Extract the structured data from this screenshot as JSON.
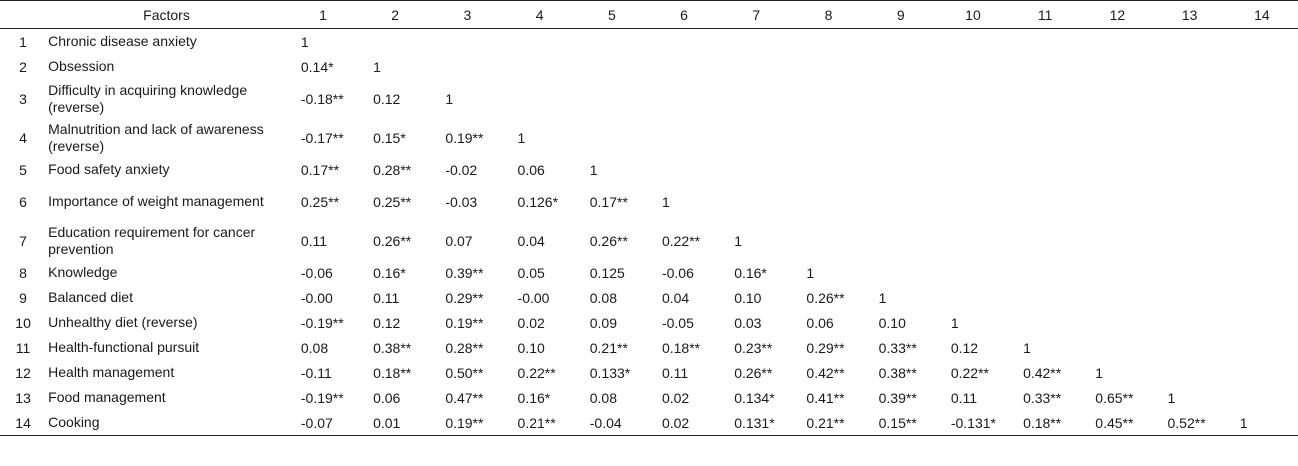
{
  "table": {
    "header": [
      "",
      "Factors",
      "1",
      "2",
      "3",
      "4",
      "5",
      "6",
      "7",
      "8",
      "9",
      "10",
      "11",
      "12",
      "13",
      "14"
    ],
    "rows": [
      {
        "num": "1",
        "factor": "Chronic disease anxiety",
        "values": [
          "1",
          "",
          "",
          "",
          "",
          "",
          "",
          "",
          "",
          "",
          "",
          "",
          "",
          ""
        ]
      },
      {
        "num": "2",
        "factor": "Obsession",
        "values": [
          "0.14*",
          "1",
          "",
          "",
          "",
          "",
          "",
          "",
          "",
          "",
          "",
          "",
          "",
          ""
        ]
      },
      {
        "num": "3",
        "factor": "Difficulty in acquiring knowledge (reverse)",
        "values": [
          "-0.18**",
          "0.12",
          "1",
          "",
          "",
          "",
          "",
          "",
          "",
          "",
          "",
          "",
          "",
          ""
        ]
      },
      {
        "num": "4",
        "factor": "Malnutrition and lack of awareness (reverse)",
        "values": [
          "-0.17**",
          "0.15*",
          "0.19**",
          "1",
          "",
          "",
          "",
          "",
          "",
          "",
          "",
          "",
          "",
          ""
        ]
      },
      {
        "num": "5",
        "factor": "Food safety anxiety",
        "values": [
          "0.17**",
          "0.28**",
          "-0.02",
          "0.06",
          "1",
          "",
          "",
          "",
          "",
          "",
          "",
          "",
          "",
          ""
        ]
      },
      {
        "num": "6",
        "factor": "Importance of weight management",
        "values": [
          "0.25**",
          "0.25**",
          "-0.03",
          "0.126*",
          "0.17**",
          "1",
          "",
          "",
          "",
          "",
          "",
          "",
          "",
          ""
        ]
      },
      {
        "num": "7",
        "factor": "Education requirement for cancer prevention",
        "values": [
          "0.11",
          "0.26**",
          "0.07",
          "0.04",
          "0.26**",
          "0.22**",
          "1",
          "",
          "",
          "",
          "",
          "",
          "",
          ""
        ]
      },
      {
        "num": "8",
        "factor": "Knowledge",
        "values": [
          "-0.06",
          "0.16*",
          "0.39**",
          "0.05",
          "0.125",
          "-0.06",
          "0.16*",
          "1",
          "",
          "",
          "",
          "",
          "",
          ""
        ]
      },
      {
        "num": "9",
        "factor": "Balanced diet",
        "values": [
          "-0.00",
          "0.11",
          "0.29**",
          "-0.00",
          "0.08",
          "0.04",
          "0.10",
          "0.26**",
          "1",
          "",
          "",
          "",
          "",
          ""
        ]
      },
      {
        "num": "10",
        "factor": "Unhealthy diet (reverse)",
        "values": [
          "-0.19**",
          "0.12",
          "0.19**",
          "0.02",
          "0.09",
          "-0.05",
          "0.03",
          "0.06",
          "0.10",
          "1",
          "",
          "",
          "",
          ""
        ]
      },
      {
        "num": "11",
        "factor": "Health-functional pursuit",
        "values": [
          "0.08",
          "0.38**",
          "0.28**",
          "0.10",
          "0.21**",
          "0.18**",
          "0.23**",
          "0.29**",
          "0.33**",
          "0.12",
          "1",
          "",
          "",
          ""
        ]
      },
      {
        "num": "12",
        "factor": "Health management",
        "values": [
          "-0.11",
          "0.18**",
          "0.50**",
          "0.22**",
          "0.133*",
          "0.11",
          "0.26**",
          "0.42**",
          "0.38**",
          "0.22**",
          "0.42**",
          "1",
          "",
          ""
        ]
      },
      {
        "num": "13",
        "factor": "Food management",
        "values": [
          "-0.19**",
          "0.06",
          "0.47**",
          "0.16*",
          "0.08",
          "0.02",
          "0.134*",
          "0.41**",
          "0.39**",
          "0.11",
          "0.33**",
          "0.65**",
          "1",
          ""
        ]
      },
      {
        "num": "14",
        "factor": "Cooking",
        "values": [
          "-0.07",
          "0.01",
          "0.19**",
          "0.21**",
          "-0.04",
          "0.02",
          "0.131*",
          "0.21**",
          "0.15**",
          "-0.131*",
          "0.18**",
          "0.45**",
          "0.52**",
          "1"
        ]
      }
    ]
  }
}
